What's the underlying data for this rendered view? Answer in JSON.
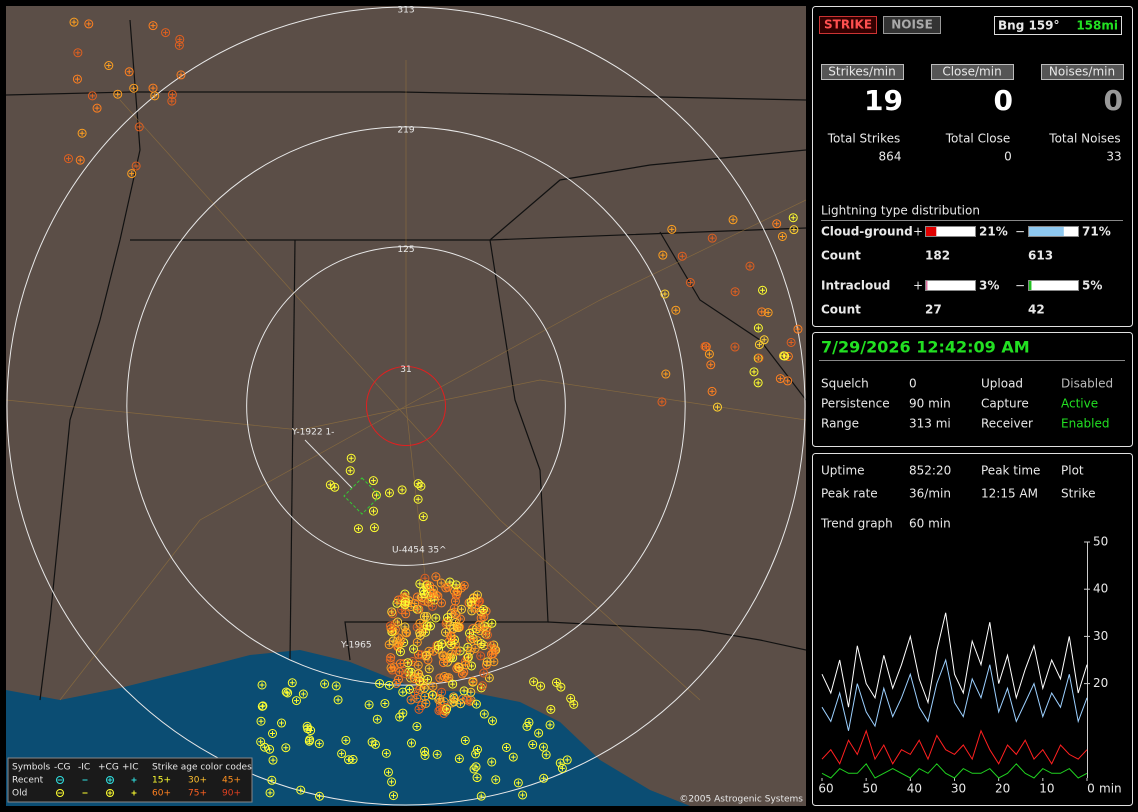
{
  "map": {
    "range_rings": [
      31,
      125,
      219,
      313
    ],
    "cursor_labels": [
      "Y-1922 1-",
      "U-4454 35^",
      "Y-1965"
    ],
    "legend": {
      "symbols": "Symbols",
      "types": [
        "-CG",
        "-IC",
        "+CG",
        "+IC"
      ],
      "age_title": "Strike age color codes",
      "rows": [
        {
          "label": "Recent",
          "ages": [
            "15+",
            "30+",
            "45+"
          ]
        },
        {
          "label": "Old",
          "ages": [
            "60+",
            "75+",
            "90+"
          ]
        }
      ]
    },
    "copyright": "©2005 Astrogenic Systems"
  },
  "summary": {
    "buttons": [
      "STRIKE",
      "NOISE"
    ],
    "bearing": {
      "label": "Bng 159°",
      "distance": "158mi"
    },
    "rates": [
      {
        "label": "Strikes/min",
        "value": 19
      },
      {
        "label": "Close/min",
        "value": 0
      },
      {
        "label": "Noises/min",
        "value": 0
      }
    ],
    "totals": [
      {
        "label": "Total Strikes",
        "value": 864
      },
      {
        "label": "Total Close",
        "value": 0
      },
      {
        "label": "Total Noises",
        "value": 33
      }
    ],
    "distribution": {
      "title": "Lightning type distribution",
      "rows": [
        {
          "label": "Cloud-ground",
          "plus": "+",
          "plus_pct": {
            "value": 21,
            "label": "21%"
          },
          "plus_color": "#e00000",
          "minus": "−",
          "minus_pct": {
            "value": 71,
            "label": "71%"
          },
          "minus_color": "#8ec8f0",
          "count_label": "Count",
          "plus_count": 182,
          "minus_count": 613
        },
        {
          "label": "Intracloud",
          "plus": "+",
          "plus_pct": {
            "value": 3,
            "label": "3%"
          },
          "plus_color": "#e070a0",
          "minus": "−",
          "minus_pct": {
            "value": 5,
            "label": "5%"
          },
          "minus_color": "#20c020",
          "count_label": "Count",
          "plus_count": 27,
          "minus_count": 42
        }
      ]
    }
  },
  "status": {
    "datetime": "7/29/2026 12:42:09 AM",
    "rows": [
      {
        "label": "Squelch",
        "value": "0",
        "label2": "Upload",
        "value2": "Disabled"
      },
      {
        "label": "Persistence",
        "value": "90 min",
        "label2": "Capture",
        "value2": "Active"
      },
      {
        "label": "Range",
        "value": "313 mi",
        "label2": "Receiver",
        "value2": "Enabled"
      }
    ]
  },
  "stats": {
    "rows": [
      {
        "label": "Uptime",
        "value": "852:20",
        "label2": "Peak time",
        "value2": "Plot"
      },
      {
        "label": "Peak rate",
        "value": "36/min",
        "label2": "12:15 AM",
        "value2": "Strike"
      }
    ],
    "trend_label": "Trend graph",
    "trend_span": "60 min"
  },
  "trend_graph": {
    "type": "line",
    "x": [
      60,
      58,
      56,
      54,
      52,
      50,
      48,
      46,
      44,
      42,
      40,
      38,
      36,
      34,
      32,
      30,
      28,
      26,
      24,
      22,
      20,
      18,
      16,
      14,
      12,
      10,
      8,
      6,
      4,
      2,
      0
    ],
    "xlim": [
      60,
      0
    ],
    "xticks": [
      60,
      50,
      40,
      30,
      20,
      10,
      0
    ],
    "x_unit": "min",
    "ylim": [
      0,
      50
    ],
    "yticks": [
      20,
      30,
      40,
      50
    ],
    "series": [
      {
        "color": "#ffffff",
        "values": [
          22,
          18,
          25,
          15,
          28,
          20,
          17,
          26,
          19,
          24,
          30,
          21,
          16,
          27,
          35,
          22,
          18,
          29,
          24,
          33,
          20,
          26,
          17,
          23,
          28,
          19,
          25,
          21,
          30,
          18,
          24
        ]
      },
      {
        "color": "#9cd0ff",
        "values": [
          15,
          12,
          18,
          10,
          20,
          14,
          11,
          19,
          13,
          17,
          22,
          15,
          12,
          20,
          25,
          16,
          13,
          21,
          17,
          24,
          14,
          19,
          12,
          16,
          20,
          13,
          18,
          15,
          22,
          12,
          17
        ]
      },
      {
        "color": "#ff2020",
        "values": [
          4,
          6,
          3,
          8,
          5,
          10,
          4,
          7,
          3,
          6,
          5,
          8,
          4,
          9,
          6,
          5,
          7,
          4,
          10,
          6,
          3,
          7,
          5,
          8,
          4,
          6,
          3,
          7,
          5,
          4,
          6
        ]
      },
      {
        "color": "#20d020",
        "values": [
          1,
          0,
          2,
          1,
          1,
          3,
          0,
          1,
          2,
          1,
          0,
          2,
          1,
          3,
          1,
          0,
          2,
          1,
          1,
          2,
          0,
          1,
          3,
          1,
          0,
          2,
          1,
          1,
          2,
          0,
          1
        ]
      }
    ]
  }
}
